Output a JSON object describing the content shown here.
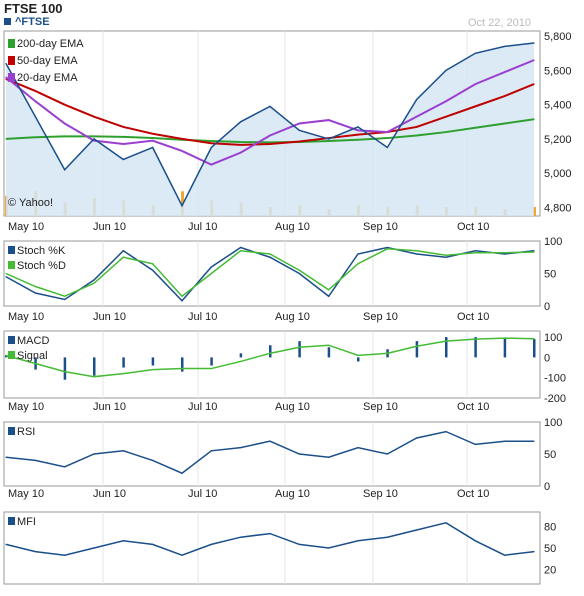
{
  "header": {
    "title": "FTSE 100",
    "ticker": "^FTSE",
    "date": "Oct 22, 2010",
    "watermark": "© Yahoo!"
  },
  "colors": {
    "price_line": "#1a4f8a",
    "price_fill": "#d6e6f4",
    "ema200": "#2ea02e",
    "ema50": "#c00000",
    "ema20": "#9a3fd0",
    "volume": "#f0a830",
    "stoch_k": "#1a4f8a",
    "stoch_d": "#44bb33",
    "macd": "#1a4f8a",
    "signal": "#44bb33",
    "rsi": "#1a4f8a",
    "mfi": "#1a4f8a",
    "panel_border": "#999999",
    "grid": "#e4e4e4"
  },
  "chart_data": [
    {
      "type": "line",
      "panel": "price",
      "x_labels": [
        "May 10",
        "Jun 10",
        "Jul 10",
        "Aug 10",
        "Sep 10",
        "Oct 10"
      ],
      "y_ticks": [
        "5,800",
        "5,600",
        "5,400",
        "5,200",
        "5,000",
        "4,800"
      ],
      "ylim": [
        4750,
        5830
      ],
      "legend_position": "top-left",
      "series": [
        {
          "name": "200-day EMA",
          "values": [
            5200,
            5210,
            5215,
            5215,
            5212,
            5205,
            5195,
            5188,
            5182,
            5180,
            5182,
            5188,
            5195,
            5205,
            5220,
            5240,
            5265,
            5290,
            5315
          ]
        },
        {
          "name": "50-day EMA",
          "values": [
            5550,
            5480,
            5400,
            5330,
            5270,
            5230,
            5200,
            5175,
            5165,
            5170,
            5185,
            5205,
            5225,
            5240,
            5270,
            5330,
            5390,
            5450,
            5520
          ]
        },
        {
          "name": "20-day EMA",
          "values": [
            5560,
            5420,
            5290,
            5190,
            5170,
            5190,
            5130,
            5050,
            5120,
            5220,
            5290,
            5310,
            5250,
            5240,
            5330,
            5420,
            5520,
            5590,
            5660
          ]
        },
        {
          "name": "^FTSE",
          "values": [
            5640,
            5330,
            5020,
            5200,
            5080,
            5150,
            4810,
            5150,
            5300,
            5390,
            5250,
            5200,
            5270,
            5150,
            5430,
            5600,
            5700,
            5740,
            5760
          ]
        }
      ],
      "volume": [
        0.45,
        0.55,
        0.3,
        0.4,
        0.35,
        0.25,
        0.55,
        0.35,
        0.3,
        0.2,
        0.25,
        0.15,
        0.25,
        0.2,
        0.25,
        0.2,
        0.2,
        0.15,
        0.2
      ]
    },
    {
      "type": "line",
      "panel": "stochastic",
      "y_ticks": [
        "100",
        "50",
        "0"
      ],
      "ylim": [
        0,
        100
      ],
      "series": [
        {
          "name": "Stoch %K",
          "values": [
            45,
            20,
            10,
            40,
            85,
            55,
            8,
            60,
            90,
            75,
            50,
            15,
            80,
            90,
            80,
            75,
            85,
            80,
            85
          ]
        },
        {
          "name": "Stoch %D",
          "values": [
            50,
            30,
            15,
            35,
            75,
            65,
            15,
            50,
            85,
            80,
            55,
            25,
            65,
            88,
            85,
            78,
            82,
            82,
            83
          ]
        }
      ]
    },
    {
      "type": "bar",
      "panel": "macd",
      "y_ticks": [
        "100",
        "0",
        "-100",
        "-200"
      ],
      "ylim": [
        -200,
        130
      ],
      "series": [
        {
          "name": "MACD",
          "values": [
            10,
            -60,
            -110,
            -90,
            -50,
            -40,
            -70,
            -40,
            20,
            60,
            80,
            50,
            -20,
            40,
            80,
            100,
            100,
            95,
            90
          ]
        },
        {
          "name": "Signal",
          "values": [
            10,
            -30,
            -70,
            -95,
            -80,
            -60,
            -55,
            -55,
            -20,
            20,
            50,
            60,
            10,
            20,
            55,
            80,
            90,
            95,
            92
          ]
        }
      ]
    },
    {
      "type": "line",
      "panel": "rsi",
      "y_ticks": [
        "100",
        "50",
        "0"
      ],
      "ylim": [
        0,
        100
      ],
      "series": [
        {
          "name": "RSI",
          "values": [
            45,
            40,
            30,
            50,
            55,
            40,
            20,
            55,
            60,
            70,
            50,
            45,
            60,
            50,
            75,
            85,
            65,
            70,
            70
          ]
        }
      ]
    },
    {
      "type": "line",
      "panel": "mfi",
      "y_ticks": [
        "80",
        "50",
        "20"
      ],
      "ylim": [
        0,
        100
      ],
      "series": [
        {
          "name": "MFI",
          "values": [
            55,
            45,
            40,
            50,
            60,
            55,
            40,
            55,
            65,
            70,
            55,
            50,
            60,
            65,
            75,
            85,
            60,
            40,
            45
          ]
        }
      ]
    }
  ]
}
